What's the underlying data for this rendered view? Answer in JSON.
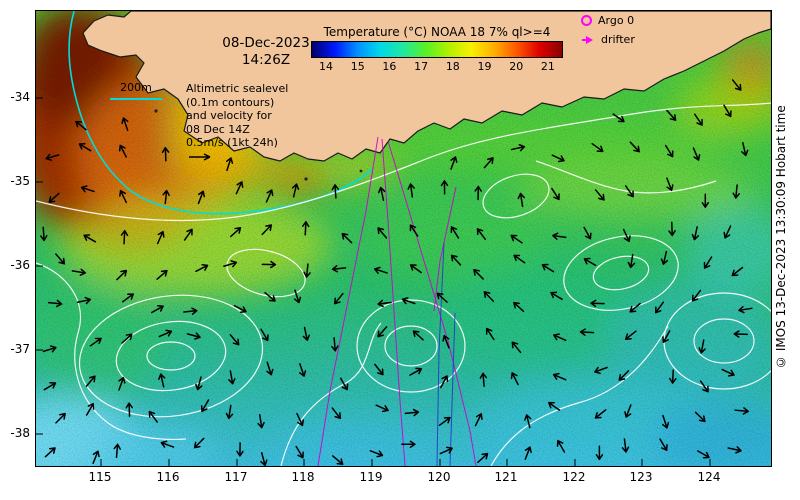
{
  "title_block": {
    "date": "08-Dec-2023",
    "time": "14:26Z"
  },
  "scalebar": {
    "label": "200m"
  },
  "info_block": {
    "lines": [
      "Altimetric sealevel",
      "(0.1m contours)",
      "and velocity for",
      "08 Dec 14Z",
      "0.5m/s (1kt 24h)"
    ]
  },
  "colorbar": {
    "title": "Temperature (°C) NOAA 18 7% ql>=4",
    "ticks": [
      "14",
      "15",
      "16",
      "17",
      "18",
      "19",
      "20",
      "21"
    ]
  },
  "legend": {
    "argo_label": "Argo 0",
    "drifter_label": "drifter"
  },
  "axes": {
    "x_ticks": [
      "115",
      "116",
      "117",
      "118",
      "119",
      "120",
      "121",
      "122",
      "123",
      "124"
    ],
    "y_ticks": [
      "-34",
      "-35",
      "-36",
      "-37",
      "-38"
    ]
  },
  "copyright": "© IMOS 13-Dec-2023 13:30:09 Hobart time",
  "icons": {
    "argo": "magenta-circle-outline",
    "drifter": "magenta-right-arrow",
    "velocity_vector": "black-arrow",
    "scale_line": "cyan-line"
  },
  "colors": {
    "land": "#f2c69c",
    "marker": "#ff00ff",
    "isobath": "#00dcdc",
    "drifter_track": "#cc00cc"
  }
}
